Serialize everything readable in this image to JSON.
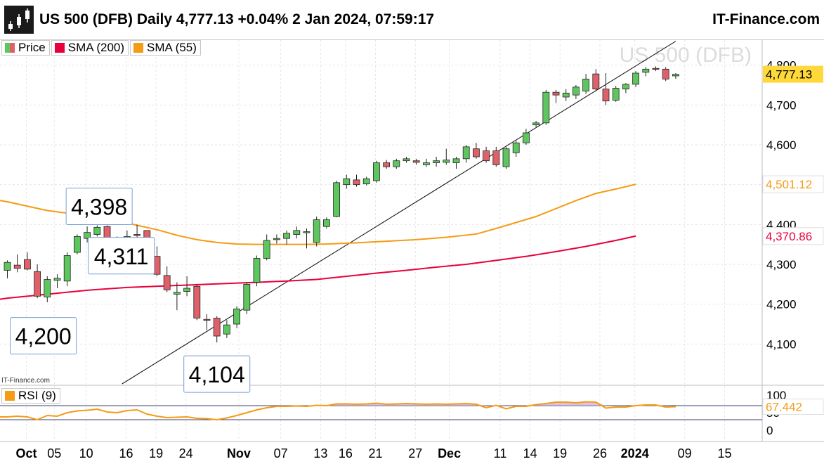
{
  "header": {
    "title": "US 500 (DFB) Daily 4,777.13 +0.04% 2 Jan 2024, 07:59:17",
    "brand": "IT-Finance.com",
    "logo_icon": "candlestick-logo-icon"
  },
  "legend": [
    {
      "label": "Price",
      "color": "#4caf50"
    },
    {
      "label": "SMA (200)",
      "color": "#e8003c"
    },
    {
      "label": "SMA (55)",
      "color": "#f59b14"
    }
  ],
  "rsi_legend": {
    "label": "RSI (9)",
    "color": "#f59b14"
  },
  "source_note": "IT-Finance.com",
  "chart_data": {
    "type": "candlestick",
    "watermark": "US 500 (DFB)",
    "up_color": "#5ec65e",
    "down_color": "#e0606a",
    "price_axis": {
      "min": 4030,
      "max": 4850,
      "ticks": [
        4100,
        4200,
        4300,
        4400,
        4500,
        4600,
        4700,
        4800
      ],
      "tick_labels": [
        "4,100",
        "4,200",
        "4,300",
        "4,400",
        "",
        "4,600",
        "4,700",
        "4,800"
      ]
    },
    "time_axis": {
      "labels": [
        {
          "label": "Oct",
          "index": 0
        },
        {
          "label": "05",
          "index": 2.8
        },
        {
          "label": "10",
          "index": 6
        },
        {
          "label": "16",
          "index": 10
        },
        {
          "label": "19",
          "index": 13
        },
        {
          "label": "24",
          "index": 16
        },
        {
          "label": "Nov",
          "index": 21.3
        },
        {
          "label": "07",
          "index": 25.5
        },
        {
          "label": "13",
          "index": 29.5
        },
        {
          "label": "16",
          "index": 32
        },
        {
          "label": "21",
          "index": 35
        },
        {
          "label": "27",
          "index": 39
        },
        {
          "label": "Dec",
          "index": 42.4
        },
        {
          "label": "11",
          "index": 47.5
        },
        {
          "label": "14",
          "index": 50.5
        },
        {
          "label": "19",
          "index": 53.5
        },
        {
          "label": "26",
          "index": 57.5
        },
        {
          "label": "2024",
          "index": 61
        },
        {
          "label": "09",
          "index": 66
        },
        {
          "label": "15",
          "index": 70
        }
      ]
    },
    "candles": [
      {
        "o": 4285,
        "h": 4310,
        "l": 4265,
        "c": 4305
      },
      {
        "o": 4298,
        "h": 4325,
        "l": 4280,
        "c": 4290
      },
      {
        "o": 4312,
        "h": 4330,
        "l": 4285,
        "c": 4288
      },
      {
        "o": 4282,
        "h": 4300,
        "l": 4215,
        "c": 4220
      },
      {
        "o": 4218,
        "h": 4270,
        "l": 4205,
        "c": 4262
      },
      {
        "o": 4260,
        "h": 4275,
        "l": 4240,
        "c": 4265
      },
      {
        "o": 4258,
        "h": 4330,
        "l": 4245,
        "c": 4322
      },
      {
        "o": 4330,
        "h": 4375,
        "l": 4325,
        "c": 4370
      },
      {
        "o": 4365,
        "h": 4395,
        "l": 4355,
        "c": 4380
      },
      {
        "o": 4375,
        "h": 4398,
        "l": 4370,
        "c": 4393
      },
      {
        "o": 4395,
        "h": 4398,
        "l": 4345,
        "c": 4352
      },
      {
        "o": 4350,
        "h": 4370,
        "l": 4325,
        "c": 4335
      },
      {
        "o": 4340,
        "h": 4385,
        "l": 4330,
        "c": 4370
      },
      {
        "o": 4375,
        "h": 4400,
        "l": 4368,
        "c": 4373
      },
      {
        "o": 4385,
        "h": 4385,
        "l": 4318,
        "c": 4322
      },
      {
        "o": 4320,
        "h": 4345,
        "l": 4270,
        "c": 4275
      },
      {
        "o": 4272,
        "h": 4295,
        "l": 4230,
        "c": 4236
      },
      {
        "o": 4225,
        "h": 4255,
        "l": 4185,
        "c": 4230
      },
      {
        "o": 4232,
        "h": 4270,
        "l": 4220,
        "c": 4240
      },
      {
        "o": 4245,
        "h": 4250,
        "l": 4160,
        "c": 4165
      },
      {
        "o": 4162,
        "h": 4175,
        "l": 4135,
        "c": 4160
      },
      {
        "o": 4165,
        "h": 4170,
        "l": 4104,
        "c": 4120
      },
      {
        "o": 4125,
        "h": 4160,
        "l": 4115,
        "c": 4148
      },
      {
        "o": 4150,
        "h": 4195,
        "l": 4140,
        "c": 4188
      },
      {
        "o": 4185,
        "h": 4255,
        "l": 4175,
        "c": 4250
      },
      {
        "o": 4255,
        "h": 4322,
        "l": 4245,
        "c": 4315
      },
      {
        "o": 4315,
        "h": 4375,
        "l": 4310,
        "c": 4360
      },
      {
        "o": 4362,
        "h": 4375,
        "l": 4352,
        "c": 4365
      },
      {
        "o": 4365,
        "h": 4385,
        "l": 4350,
        "c": 4378
      },
      {
        "o": 4375,
        "h": 4395,
        "l": 4365,
        "c": 4385
      },
      {
        "o": 4380,
        "h": 4390,
        "l": 4340,
        "c": 4382
      },
      {
        "o": 4355,
        "h": 4420,
        "l": 4345,
        "c": 4412
      },
      {
        "o": 4395,
        "h": 4418,
        "l": 4390,
        "c": 4412
      },
      {
        "o": 4420,
        "h": 4510,
        "l": 4418,
        "c": 4505
      },
      {
        "o": 4500,
        "h": 4525,
        "l": 4490,
        "c": 4515
      },
      {
        "o": 4512,
        "h": 4525,
        "l": 4495,
        "c": 4500
      },
      {
        "o": 4502,
        "h": 4520,
        "l": 4498,
        "c": 4515
      },
      {
        "o": 4510,
        "h": 4560,
        "l": 4505,
        "c": 4555
      },
      {
        "o": 4555,
        "h": 4562,
        "l": 4540,
        "c": 4545
      },
      {
        "o": 4545,
        "h": 4565,
        "l": 4540,
        "c": 4560
      },
      {
        "o": 4560,
        "h": 4570,
        "l": 4555,
        "c": 4565
      },
      {
        "o": 4560,
        "h": 4565,
        "l": 4550,
        "c": 4556
      },
      {
        "o": 4550,
        "h": 4565,
        "l": 4545,
        "c": 4555
      },
      {
        "o": 4555,
        "h": 4570,
        "l": 4545,
        "c": 4560
      },
      {
        "o": 4556,
        "h": 4590,
        "l": 4550,
        "c": 4562
      },
      {
        "o": 4555,
        "h": 4570,
        "l": 4540,
        "c": 4565
      },
      {
        "o": 4565,
        "h": 4600,
        "l": 4555,
        "c": 4595
      },
      {
        "o": 4590,
        "h": 4605,
        "l": 4565,
        "c": 4570
      },
      {
        "o": 4585,
        "h": 4595,
        "l": 4555,
        "c": 4560
      },
      {
        "o": 4585,
        "h": 4595,
        "l": 4545,
        "c": 4550
      },
      {
        "o": 4545,
        "h": 4595,
        "l": 4540,
        "c": 4590
      },
      {
        "o": 4580,
        "h": 4610,
        "l": 4570,
        "c": 4605
      },
      {
        "o": 4605,
        "h": 4640,
        "l": 4600,
        "c": 4630
      },
      {
        "o": 4650,
        "h": 4660,
        "l": 4645,
        "c": 4655
      },
      {
        "o": 4655,
        "h": 4738,
        "l": 4650,
        "c": 4732
      },
      {
        "o": 4732,
        "h": 4738,
        "l": 4705,
        "c": 4725
      },
      {
        "o": 4720,
        "h": 4740,
        "l": 4710,
        "c": 4730
      },
      {
        "o": 4725,
        "h": 4750,
        "l": 4715,
        "c": 4745
      },
      {
        "o": 4735,
        "h": 4778,
        "l": 4728,
        "c": 4765
      },
      {
        "o": 4778,
        "h": 4790,
        "l": 4735,
        "c": 4740
      },
      {
        "o": 4740,
        "h": 4780,
        "l": 4700,
        "c": 4710
      },
      {
        "o": 4712,
        "h": 4748,
        "l": 4708,
        "c": 4742
      },
      {
        "o": 4740,
        "h": 4755,
        "l": 4730,
        "c": 4752
      },
      {
        "o": 4752,
        "h": 4785,
        "l": 4745,
        "c": 4780
      },
      {
        "o": 4782,
        "h": 4795,
        "l": 4772,
        "c": 4790
      },
      {
        "o": 4792,
        "h": 4797,
        "l": 4785,
        "c": 4790
      },
      {
        "o": 4790,
        "h": 4795,
        "l": 4760,
        "c": 4765
      },
      {
        "o": 4773,
        "h": 4780,
        "l": 4766,
        "c": 4777
      }
    ],
    "sma55": {
      "color": "#f59b14",
      "points": [
        [
          -3,
          4470
        ],
        [
          0,
          4457
        ],
        [
          4,
          4435
        ],
        [
          8,
          4422
        ],
        [
          11,
          4410
        ],
        [
          13,
          4398
        ],
        [
          15,
          4387
        ],
        [
          17,
          4373
        ],
        [
          19,
          4362
        ],
        [
          21,
          4355
        ],
        [
          23,
          4351
        ],
        [
          25,
          4350
        ],
        [
          27,
          4350
        ],
        [
          30,
          4350
        ],
        [
          32,
          4351
        ],
        [
          35,
          4354
        ],
        [
          38,
          4358
        ],
        [
          41,
          4362
        ],
        [
          44,
          4368
        ],
        [
          47,
          4376
        ],
        [
          49,
          4390
        ],
        [
          51,
          4405
        ],
        [
          53,
          4420
        ],
        [
          55,
          4440
        ],
        [
          57,
          4460
        ],
        [
          59,
          4478
        ],
        [
          61,
          4489
        ],
        [
          63,
          4501
        ]
      ],
      "label": "4,501.12"
    },
    "sma200": {
      "color": "#e8003c",
      "points": [
        [
          -3,
          4205
        ],
        [
          0,
          4215
        ],
        [
          4,
          4225
        ],
        [
          8,
          4235
        ],
        [
          12,
          4242
        ],
        [
          16,
          4246
        ],
        [
          20,
          4250
        ],
        [
          24,
          4254
        ],
        [
          28,
          4258
        ],
        [
          31,
          4262
        ],
        [
          34,
          4270
        ],
        [
          37,
          4278
        ],
        [
          40,
          4285
        ],
        [
          43,
          4293
        ],
        [
          46,
          4300
        ],
        [
          49,
          4310
        ],
        [
          52,
          4320
        ],
        [
          55,
          4332
        ],
        [
          58,
          4345
        ],
        [
          61,
          4360
        ],
        [
          63,
          4371
        ]
      ],
      "label": "4,370.86"
    },
    "trendline": {
      "color": "#1a1a1a",
      "from": [
        11.5,
        4000
      ],
      "to": [
        67,
        4860
      ]
    },
    "last_price": {
      "value": 4777.13,
      "label": "4,777.13",
      "color": "#ffd83a"
    },
    "annotations": [
      {
        "label": "4,398",
        "index": 9.2,
        "value": 4398,
        "placement": "above"
      },
      {
        "label": "4,311",
        "index": 10.5,
        "value": 4311,
        "placement": "inline"
      },
      {
        "label": "4,200",
        "index": 3.6,
        "value": 4200,
        "placement": "below"
      },
      {
        "label": "4,104",
        "index": 21,
        "value": 4104,
        "placement": "below"
      }
    ],
    "rsi": {
      "min": 0,
      "max": 100,
      "levels": [
        30,
        70
      ],
      "tick_labels": [
        {
          "value": 0,
          "label": "0"
        },
        {
          "value": 50,
          "label": "50"
        },
        {
          "value": 100,
          "label": "100"
        }
      ],
      "last_label": "67.442",
      "color": "#f59b14",
      "fill_color": "#c9a8d8",
      "values": [
        38,
        40,
        38,
        30,
        42,
        40,
        50,
        55,
        57,
        60,
        52,
        50,
        56,
        58,
        46,
        40,
        36,
        37,
        38,
        34,
        33,
        30,
        35,
        42,
        50,
        58,
        64,
        68,
        68,
        69,
        68,
        71,
        70,
        75,
        75,
        74,
        75,
        77,
        74,
        75,
        76,
        75,
        74,
        75,
        74,
        75,
        76,
        74,
        64,
        71,
        61,
        68,
        68,
        73,
        76,
        80,
        80,
        78,
        81,
        80,
        63,
        66,
        66,
        70,
        72,
        72,
        66,
        67
      ]
    }
  }
}
